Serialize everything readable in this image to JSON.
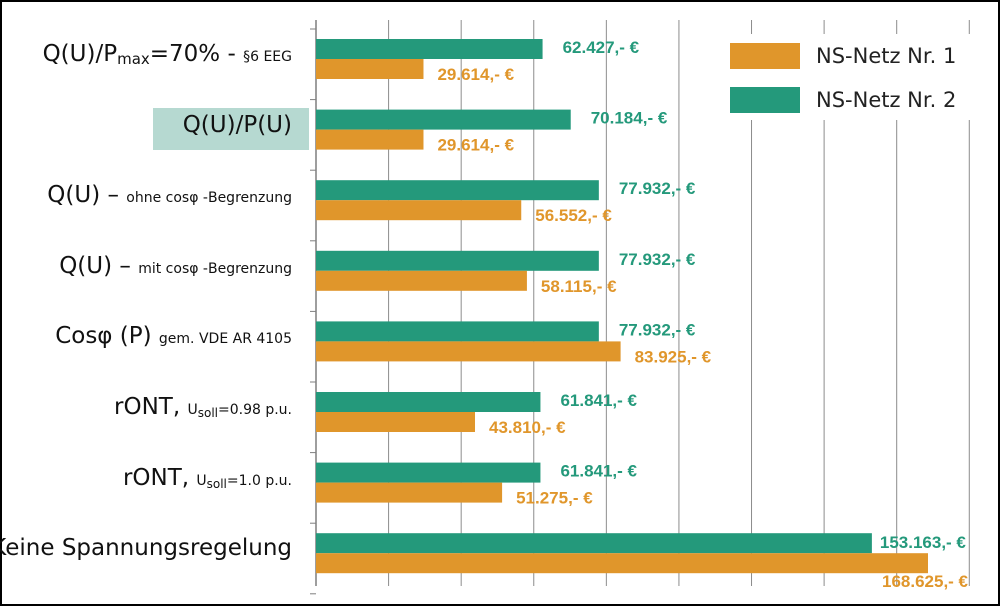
{
  "chart_data": {
    "type": "bar",
    "orientation": "horizontal",
    "categories": [
      "Q(U)/Pmax=70% - §6 EEG",
      "Q(U)/P(U)",
      "Q(U) – ohne cosφ -Begrenzung",
      "Q(U) – mit cosφ -Begrenzung",
      "Cosφ (P) gem. VDE AR 4105",
      "rONT, Usoll=0.98 p.u.",
      "rONT, Usoll=1.0 p.u.",
      "Keine Spannungsregelung"
    ],
    "category_parts": [
      {
        "a": "Q(U)/P",
        "sub": "max",
        "b": "=70% - ",
        "small": "§6 EEG"
      },
      {
        "a": "Q(U)/P(U)",
        "sub": "",
        "b": "",
        "small": ""
      },
      {
        "a": "Q(U) – ",
        "sub": "",
        "b": "",
        "small": "ohne cosφ -Begrenzung"
      },
      {
        "a": "Q(U) – ",
        "sub": "",
        "b": "",
        "small": "mit cosφ -Begrenzung"
      },
      {
        "a": "Cosφ (P) ",
        "sub": "",
        "b": "",
        "small": "gem. VDE AR 4105"
      },
      {
        "a": "rONT, ",
        "sub": "",
        "b": "",
        "small": "U",
        "small_sub": "soll",
        "small_b": "=0.98 p.u."
      },
      {
        "a": "rONT, ",
        "sub": "",
        "b": "",
        "small": "U",
        "small_sub": "soll",
        "small_b": "=1.0 p.u."
      },
      {
        "a": "Keine Spannungsregelung",
        "sub": "",
        "b": "",
        "small": ""
      }
    ],
    "highlighted_category": 1,
    "series": [
      {
        "name": "NS-Netz Nr. 2",
        "color": "#24997b",
        "values": [
          62427,
          70184,
          77932,
          77932,
          77932,
          61841,
          61841,
          153163
        ],
        "labels": [
          "62.427,- €",
          "70.184,- €",
          "77.932,- €",
          "77.932,- €",
          "77.932,- €",
          "61.841,- €",
          "61.841,- €",
          "153.163,- €"
        ]
      },
      {
        "name": "NS-Netz Nr. 1",
        "color": "#e0962b",
        "values": [
          29614,
          29614,
          56552,
          58115,
          83925,
          43810,
          51275,
          168625
        ],
        "labels": [
          "29.614,- €",
          "29.614,- €",
          "56.552,- €",
          "58.115,- €",
          "83.925,- €",
          "43.810,- €",
          "51.275,- €",
          "168.625,- €"
        ]
      }
    ],
    "legend": {
      "position": "top-right",
      "order": [
        "NS-Netz Nr. 1",
        "NS-Netz Nr. 2"
      ]
    },
    "xlim": [
      0,
      170000
    ],
    "vertical_gridlines": true,
    "gridline_step": 20000,
    "x_tick_labels_visible": false
  }
}
